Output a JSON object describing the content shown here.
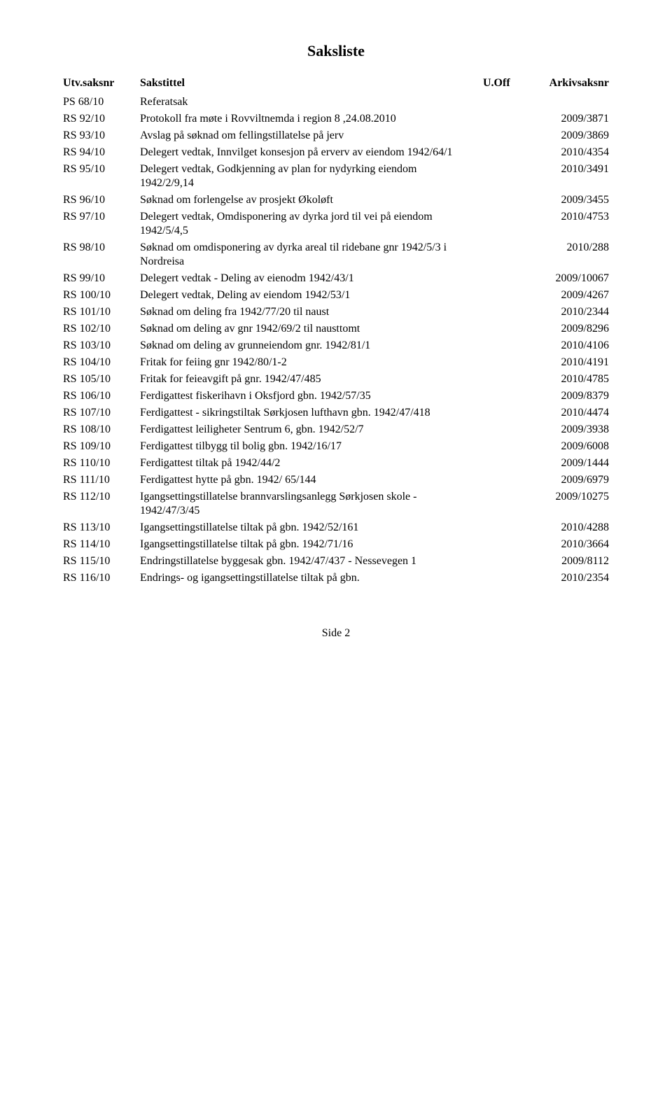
{
  "title": "Saksliste",
  "headers": {
    "ref": "Utv.saksnr",
    "title": "Sakstittel",
    "uoff": "U.Off",
    "arkiv": "Arkivsaksnr"
  },
  "rows": [
    {
      "ref": "PS 68/10",
      "title": "Referatsak",
      "arkiv": ""
    },
    {
      "ref": "RS 92/10",
      "title": "Protokoll fra møte i Rovviltnemda i region 8 ,24.08.2010",
      "arkiv": "2009/3871"
    },
    {
      "ref": "RS 93/10",
      "title": "Avslag på søknad om fellingstillatelse på jerv",
      "arkiv": "2009/3869"
    },
    {
      "ref": "RS 94/10",
      "title": "Delegert vedtak, Innvilget konsesjon på erverv av eiendom 1942/64/1",
      "arkiv": "2010/4354"
    },
    {
      "ref": "RS 95/10",
      "title": "Delegert vedtak, Godkjenning av plan for nydyrking eiendom 1942/2/9,14",
      "arkiv": "2010/3491"
    },
    {
      "ref": "RS 96/10",
      "title": "Søknad om forlengelse av prosjekt Økoløft",
      "arkiv": "2009/3455"
    },
    {
      "ref": "RS 97/10",
      "title": "Delegert vedtak, Omdisponering av dyrka jord til vei på eiendom 1942/5/4,5",
      "arkiv": "2010/4753"
    },
    {
      "ref": "RS 98/10",
      "title": "Søknad om omdisponering av dyrka areal til ridebane gnr 1942/5/3 i Nordreisa",
      "arkiv": "2010/288"
    },
    {
      "ref": "RS 99/10",
      "title": "Delegert vedtak - Deling av eienodm 1942/43/1",
      "arkiv": "2009/10067"
    },
    {
      "ref": "RS 100/10",
      "title": "Delegert vedtak, Deling av eiendom 1942/53/1",
      "arkiv": "2009/4267"
    },
    {
      "ref": "RS 101/10",
      "title": "Søknad om deling fra 1942/77/20 til naust",
      "arkiv": "2010/2344"
    },
    {
      "ref": "RS 102/10",
      "title": "Søknad om deling av gnr 1942/69/2 til nausttomt",
      "arkiv": "2009/8296"
    },
    {
      "ref": "RS 103/10",
      "title": "Søknad om deling av grunneiendom gnr. 1942/81/1",
      "arkiv": "2010/4106"
    },
    {
      "ref": "RS 104/10",
      "title": "Fritak for feiing gnr 1942/80/1-2",
      "arkiv": "2010/4191"
    },
    {
      "ref": "RS 105/10",
      "title": "Fritak for feieavgift på gnr. 1942/47/485",
      "arkiv": "2010/4785"
    },
    {
      "ref": "RS 106/10",
      "title": "Ferdigattest fiskerihavn i Oksfjord gbn. 1942/57/35",
      "arkiv": "2009/8379"
    },
    {
      "ref": "RS 107/10",
      "title": "Ferdigattest - sikringstiltak Sørkjosen lufthavn gbn. 1942/47/418",
      "arkiv": "2010/4474"
    },
    {
      "ref": "RS 108/10",
      "title": "Ferdigattest leiligheter Sentrum 6, gbn. 1942/52/7",
      "arkiv": "2009/3938"
    },
    {
      "ref": "RS 109/10",
      "title": "Ferdigattest tilbygg til bolig gbn. 1942/16/17",
      "arkiv": "2009/6008"
    },
    {
      "ref": "RS 110/10",
      "title": "Ferdigattest tiltak på 1942/44/2",
      "arkiv": "2009/1444"
    },
    {
      "ref": "RS 111/10",
      "title": "Ferdigattest hytte på gbn. 1942/ 65/144",
      "arkiv": "2009/6979"
    },
    {
      "ref": "RS 112/10",
      "title": "Igangsettingstillatelse brannvarslingsanlegg Sørkjosen skole - 1942/47/3/45",
      "arkiv": "2009/10275"
    },
    {
      "ref": "RS 113/10",
      "title": "Igangsettingstillatelse tiltak på gbn. 1942/52/161",
      "arkiv": "2010/4288"
    },
    {
      "ref": "RS 114/10",
      "title": "Igangsettingstillatelse tiltak på gbn. 1942/71/16",
      "arkiv": "2010/3664"
    },
    {
      "ref": "RS 115/10",
      "title": "Endringstillatelse byggesak gbn. 1942/47/437 - Nessevegen 1",
      "arkiv": "2009/8112"
    },
    {
      "ref": "RS 116/10",
      "title": "Endrings- og igangsettingstillatelse tiltak på gbn.",
      "arkiv": "2010/2354"
    }
  ],
  "footer": "Side 2"
}
